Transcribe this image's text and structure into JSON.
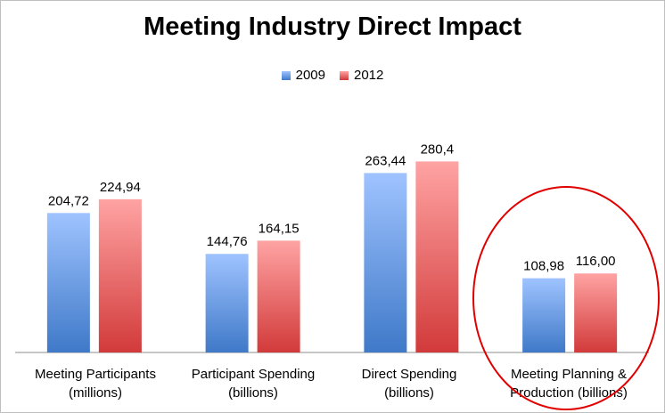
{
  "chart_data": {
    "type": "bar",
    "title": "Meeting Industry Direct Impact",
    "categories": [
      [
        "Meeting Participants",
        "(millions)"
      ],
      [
        "Participant Spending",
        "(billions)"
      ],
      [
        "Direct Spending",
        "(billions)"
      ],
      [
        "Meeting Planning &",
        "Production (billions)"
      ]
    ],
    "series": [
      {
        "name": "2009",
        "values": [
          204.72,
          144.76,
          263.44,
          108.98
        ],
        "labels": [
          "204,72",
          "144,76",
          "263,44",
          "108,98"
        ],
        "color_top": "#9fc3ff",
        "color_bottom": "#3f79c8"
      },
      {
        "name": "2012",
        "values": [
          224.94,
          164.15,
          280.4,
          116.0
        ],
        "labels": [
          "224,94",
          "164,15",
          "280,4",
          "116,00"
        ],
        "color_top": "#ffa3a3",
        "color_bottom": "#d23a3a"
      }
    ],
    "ylim": [
      0,
      300
    ],
    "grid": false,
    "legend_position": "top-center",
    "highlighted_category": 3,
    "highlight_color": "#e00000"
  }
}
